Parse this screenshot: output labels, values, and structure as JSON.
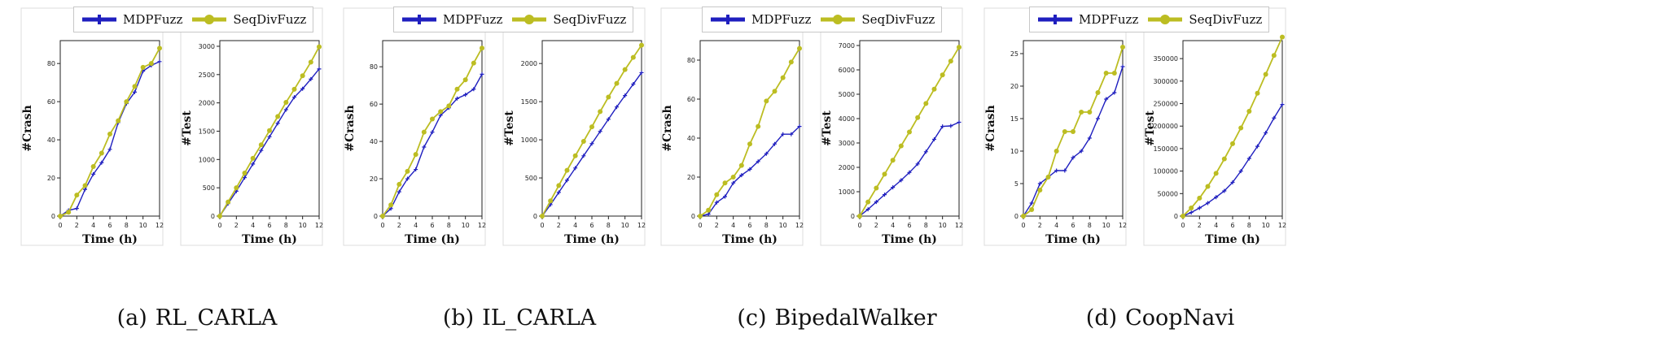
{
  "legend": {
    "mdpfuzz": "MDPFuzz",
    "seqdivfuzz": "SeqDivFuzz"
  },
  "colors": {
    "mdpfuzz": "#1f1fbf",
    "seqdivfuzz": "#bcbd22"
  },
  "chart_data": [
    {
      "type": "line",
      "panel": "a",
      "caption_tag": "(a)",
      "caption": "RL_CARLA",
      "subplots": [
        {
          "ylabel": "#Crash",
          "xlabel": "Time (h)",
          "xlim": [
            0,
            12
          ],
          "ylim": [
            0,
            92
          ],
          "xticks": [
            0,
            2,
            4,
            6,
            8,
            10,
            12
          ],
          "yticks": [
            0,
            20,
            40,
            60,
            80
          ],
          "x": [
            0,
            1,
            2,
            3,
            4,
            5,
            6,
            7,
            8,
            9,
            10,
            11,
            12
          ],
          "series": [
            {
              "name": "MDPFuzz",
              "values": [
                0,
                3,
                4,
                14,
                22,
                28,
                35,
                49,
                59,
                65,
                76,
                79,
                81
              ]
            },
            {
              "name": "SeqDivFuzz",
              "values": [
                0,
                2,
                11,
                16,
                26,
                33,
                43,
                50,
                60,
                68,
                78,
                80,
                88
              ]
            }
          ]
        },
        {
          "ylabel": "#Test",
          "xlabel": "Time (h)",
          "xlim": [
            0,
            12
          ],
          "ylim": [
            0,
            3100
          ],
          "xticks": [
            0,
            2,
            4,
            6,
            8,
            10,
            12
          ],
          "yticks": [
            0,
            500,
            1000,
            1500,
            2000,
            2500,
            3000
          ],
          "x": [
            0,
            1,
            2,
            3,
            4,
            5,
            6,
            7,
            8,
            9,
            10,
            11,
            12
          ],
          "series": [
            {
              "name": "MDPFuzz",
              "values": [
                0,
                220,
                440,
                680,
                920,
                1160,
                1400,
                1640,
                1880,
                2100,
                2250,
                2420,
                2600
              ]
            },
            {
              "name": "SeqDivFuzz",
              "values": [
                0,
                250,
                500,
                760,
                1020,
                1260,
                1510,
                1760,
                2010,
                2240,
                2480,
                2720,
                2990
              ]
            }
          ]
        }
      ]
    },
    {
      "type": "line",
      "panel": "b",
      "caption_tag": "(b)",
      "caption": "IL_CARLA",
      "subplots": [
        {
          "ylabel": "#Crash",
          "xlabel": "Time (h)",
          "xlim": [
            0,
            12
          ],
          "ylim": [
            0,
            94
          ],
          "xticks": [
            0,
            2,
            4,
            6,
            8,
            10,
            12
          ],
          "yticks": [
            0,
            20,
            40,
            60,
            80
          ],
          "x": [
            0,
            1,
            2,
            3,
            4,
            5,
            6,
            7,
            8,
            9,
            10,
            11,
            12
          ],
          "series": [
            {
              "name": "MDPFuzz",
              "values": [
                0,
                4,
                13,
                20,
                25,
                37,
                45,
                54,
                58,
                63,
                65,
                68,
                76
              ]
            },
            {
              "name": "SeqDivFuzz",
              "values": [
                0,
                6,
                17,
                24,
                33,
                45,
                52,
                56,
                59,
                68,
                73,
                82,
                90
              ]
            }
          ]
        },
        {
          "ylabel": "#Test",
          "xlabel": "Time (h)",
          "xlim": [
            0,
            12
          ],
          "ylim": [
            0,
            2300
          ],
          "xticks": [
            0,
            2,
            4,
            6,
            8,
            10,
            12
          ],
          "yticks": [
            0,
            500,
            1000,
            1500,
            2000
          ],
          "x": [
            0,
            1,
            2,
            3,
            4,
            5,
            6,
            7,
            8,
            9,
            10,
            11,
            12
          ],
          "series": [
            {
              "name": "MDPFuzz",
              "values": [
                0,
                150,
                310,
                470,
                630,
                790,
                950,
                1110,
                1270,
                1430,
                1580,
                1730,
                1880
              ]
            },
            {
              "name": "SeqDivFuzz",
              "values": [
                0,
                200,
                400,
                600,
                790,
                980,
                1170,
                1370,
                1560,
                1740,
                1920,
                2080,
                2240
              ]
            }
          ]
        }
      ]
    },
    {
      "type": "line",
      "panel": "c",
      "caption_tag": "(c)",
      "caption": "BipedalWalker",
      "subplots": [
        {
          "ylabel": "#Crash",
          "xlabel": "Time (h)",
          "xlim": [
            0,
            12
          ],
          "ylim": [
            0,
            90
          ],
          "xticks": [
            0,
            2,
            4,
            6,
            8,
            10,
            12
          ],
          "yticks": [
            0,
            20,
            40,
            60,
            80
          ],
          "x": [
            0,
            1,
            2,
            3,
            4,
            5,
            6,
            7,
            8,
            9,
            10,
            11,
            12
          ],
          "series": [
            {
              "name": "MDPFuzz",
              "values": [
                0,
                1,
                7,
                10,
                17,
                21,
                24,
                28,
                32,
                37,
                42,
                42,
                46
              ]
            },
            {
              "name": "SeqDivFuzz",
              "values": [
                0,
                3,
                11,
                17,
                20,
                26,
                37,
                46,
                59,
                64,
                71,
                79,
                86
              ]
            }
          ]
        },
        {
          "ylabel": "#Test",
          "xlabel": "Time (h)",
          "xlim": [
            0,
            12
          ],
          "ylim": [
            0,
            7200
          ],
          "xticks": [
            0,
            2,
            4,
            6,
            8,
            10,
            12
          ],
          "yticks": [
            0,
            1000,
            2000,
            3000,
            4000,
            5000,
            6000,
            7000
          ],
          "x": [
            0,
            1,
            2,
            3,
            4,
            5,
            6,
            7,
            8,
            9,
            10,
            11,
            12
          ],
          "series": [
            {
              "name": "MDPFuzz",
              "values": [
                0,
                280,
                580,
                880,
                1180,
                1470,
                1790,
                2140,
                2640,
                3150,
                3680,
                3700,
                3850
              ]
            },
            {
              "name": "SeqDivFuzz",
              "values": [
                0,
                580,
                1150,
                1720,
                2290,
                2880,
                3450,
                4040,
                4620,
                5210,
                5790,
                6360,
                6930
              ]
            }
          ]
        }
      ]
    },
    {
      "type": "line",
      "panel": "d",
      "caption_tag": "(d)",
      "caption": "CoopNavi",
      "subplots": [
        {
          "ylabel": "#Crash",
          "xlabel": "Time (h)",
          "xlim": [
            0,
            12
          ],
          "ylim": [
            0,
            27
          ],
          "xticks": [
            0,
            2,
            4,
            6,
            8,
            10,
            12
          ],
          "yticks": [
            0,
            5,
            10,
            15,
            20,
            25
          ],
          "x": [
            0,
            1,
            2,
            3,
            4,
            5,
            6,
            7,
            8,
            9,
            10,
            11,
            12
          ],
          "series": [
            {
              "name": "MDPFuzz",
              "values": [
                0,
                2,
                5,
                6,
                7,
                7,
                9,
                10,
                12,
                15,
                18,
                19,
                23
              ]
            },
            {
              "name": "SeqDivFuzz",
              "values": [
                0,
                1,
                4,
                6,
                10,
                13,
                13,
                16,
                16,
                19,
                22,
                22,
                26
              ]
            }
          ]
        },
        {
          "ylabel": "#Test",
          "xlabel": "Time (h)",
          "xlim": [
            0,
            12
          ],
          "ylim": [
            0,
            390000
          ],
          "xticks": [
            0,
            2,
            4,
            6,
            8,
            10,
            12
          ],
          "yticks": [
            0,
            50000,
            100000,
            150000,
            200000,
            250000,
            300000,
            350000
          ],
          "x": [
            0,
            1,
            2,
            3,
            4,
            5,
            6,
            7,
            8,
            9,
            10,
            11,
            12
          ],
          "series": [
            {
              "name": "MDPFuzz",
              "values": [
                0,
                8000,
                18000,
                29000,
                42000,
                56000,
                75000,
                100000,
                128000,
                155000,
                185000,
                218000,
                248000
              ]
            },
            {
              "name": "SeqDivFuzz",
              "values": [
                0,
                18000,
                40000,
                66000,
                95000,
                127000,
                161000,
                196000,
                233000,
                273000,
                315000,
                357000,
                398000
              ]
            }
          ]
        }
      ]
    }
  ]
}
